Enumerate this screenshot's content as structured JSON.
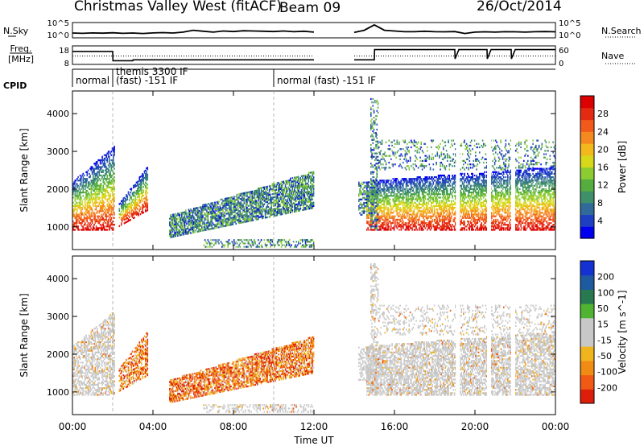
{
  "header": {
    "station": "Christmas Valley West (fitACF)",
    "beam": "Beam 09",
    "date": "26/Oct/2014"
  },
  "colors": {
    "power_scale": [
      "#0000ee",
      "#1e3fc4",
      "#2f6a9a",
      "#3f8f6a",
      "#55ad40",
      "#8ccc32",
      "#d8d81a",
      "#f2b81e",
      "#f5881e",
      "#f25a1c",
      "#e52a12",
      "#dd0000"
    ],
    "velocity_scale": [
      "#1432d2",
      "#1e5aa0",
      "#287850",
      "#50b432",
      "#c8c8c8",
      "#c8c8c8",
      "#f0b41e",
      "#f08c14",
      "#f05a14",
      "#dc1e0a"
    ],
    "gray_data": "#c8c8c8"
  },
  "chart_data": [
    {
      "type": "line",
      "ylabel_left": "N.Sky",
      "ylabel_right": "N.Search",
      "y_ticks": [
        "10^5",
        "10^0"
      ],
      "x": [
        0,
        0.5,
        1,
        1.5,
        2,
        2.5,
        3,
        3.5,
        4,
        4.5,
        5,
        5.5,
        6,
        6.5,
        7,
        7.5,
        8,
        8.5,
        9,
        9.5,
        10,
        10.5,
        11,
        11.5,
        12,
        14,
        14.5,
        15,
        15.5,
        16,
        16.5,
        17,
        17.5,
        18,
        18.5,
        19,
        19.5,
        20,
        20.5,
        21,
        21.5,
        22,
        22.5,
        23,
        23.5,
        24
      ],
      "series": [
        {
          "values": [
            0.35,
            0.33,
            0.36,
            0.34,
            0.37,
            0.33,
            0.35,
            0.32,
            0.36,
            0.38,
            0.35,
            0.42,
            0.55,
            0.48,
            0.42,
            0.5,
            0.46,
            0.52,
            0.5,
            0.48,
            0.46,
            0.5,
            0.45,
            0.48,
            0.42,
            0.4,
            0.55,
            0.95,
            0.55,
            0.5,
            0.45,
            0.45,
            0.48,
            0.45,
            0.44,
            0.46,
            0.32,
            0.42,
            0.44,
            0.42,
            0.45,
            0.44,
            0.42,
            0.45,
            0.46,
            0.44
          ]
        }
      ],
      "gap_hours": [
        12,
        14
      ]
    },
    {
      "type": "line",
      "ylabel_left": "Freq. [MHz]",
      "ylabel_right": "Nave",
      "y_ticks_left": [
        "18",
        "8"
      ],
      "y_ticks_right": [
        "60",
        "0"
      ],
      "freq_steps": [
        [
          0,
          15
        ],
        [
          2,
          15
        ],
        [
          2.01,
          10
        ],
        [
          3,
          10
        ],
        [
          3.01,
          10.5
        ],
        [
          12,
          10.5
        ],
        [
          14,
          10.5
        ],
        [
          15,
          10.5
        ],
        [
          15.01,
          16
        ],
        [
          19,
          16
        ],
        [
          19.01,
          11
        ],
        [
          19.2,
          16
        ],
        [
          20.6,
          16
        ],
        [
          20.61,
          11
        ],
        [
          20.8,
          16
        ],
        [
          21.8,
          16
        ],
        [
          21.81,
          11
        ],
        [
          22,
          16
        ],
        [
          24,
          16
        ]
      ],
      "nave_dotted": 0.45
    },
    {
      "type": "heatmap",
      "cpid_label": "CPID",
      "cpid_segments": [
        {
          "start": 0,
          "end": 2,
          "label": "normal"
        },
        {
          "start": 2,
          "end": 10,
          "label": "themis 3300 IF\n(fast) -151 IF"
        },
        {
          "start": 10,
          "end": 24,
          "label": "normal (fast) -151 IF"
        }
      ]
    },
    {
      "type": "heatmap",
      "name": "power",
      "ylabel": "Slant Range [km]",
      "y_ticks": [
        "1000",
        "2000",
        "3000",
        "4000"
      ],
      "ylim": [
        400,
        4600
      ],
      "colorbar_label": "Power [dB]",
      "colorbar_ticks": [
        "4",
        "8",
        "12",
        "16",
        "20",
        "24",
        "28"
      ],
      "vmin": 0,
      "vmax": 30
    },
    {
      "type": "heatmap",
      "name": "velocity",
      "ylabel": "Slant Range [km]",
      "y_ticks": [
        "1000",
        "2000",
        "3000",
        "4000"
      ],
      "ylim": [
        400,
        4600
      ],
      "colorbar_label": "Velocity [m s^-1]",
      "colorbar_ticks": [
        "200",
        "100",
        "50",
        "15",
        "-15",
        "-50",
        "-100",
        "-200"
      ]
    }
  ],
  "xaxis": {
    "xlabel": "Time UT",
    "tick_labels": [
      "00:00",
      "04:00",
      "08:00",
      "12:00",
      "16:00",
      "20:00",
      "00:00"
    ],
    "tick_hours": [
      0,
      4,
      8,
      12,
      16,
      20,
      24
    ],
    "xlim": [
      0,
      24
    ]
  }
}
